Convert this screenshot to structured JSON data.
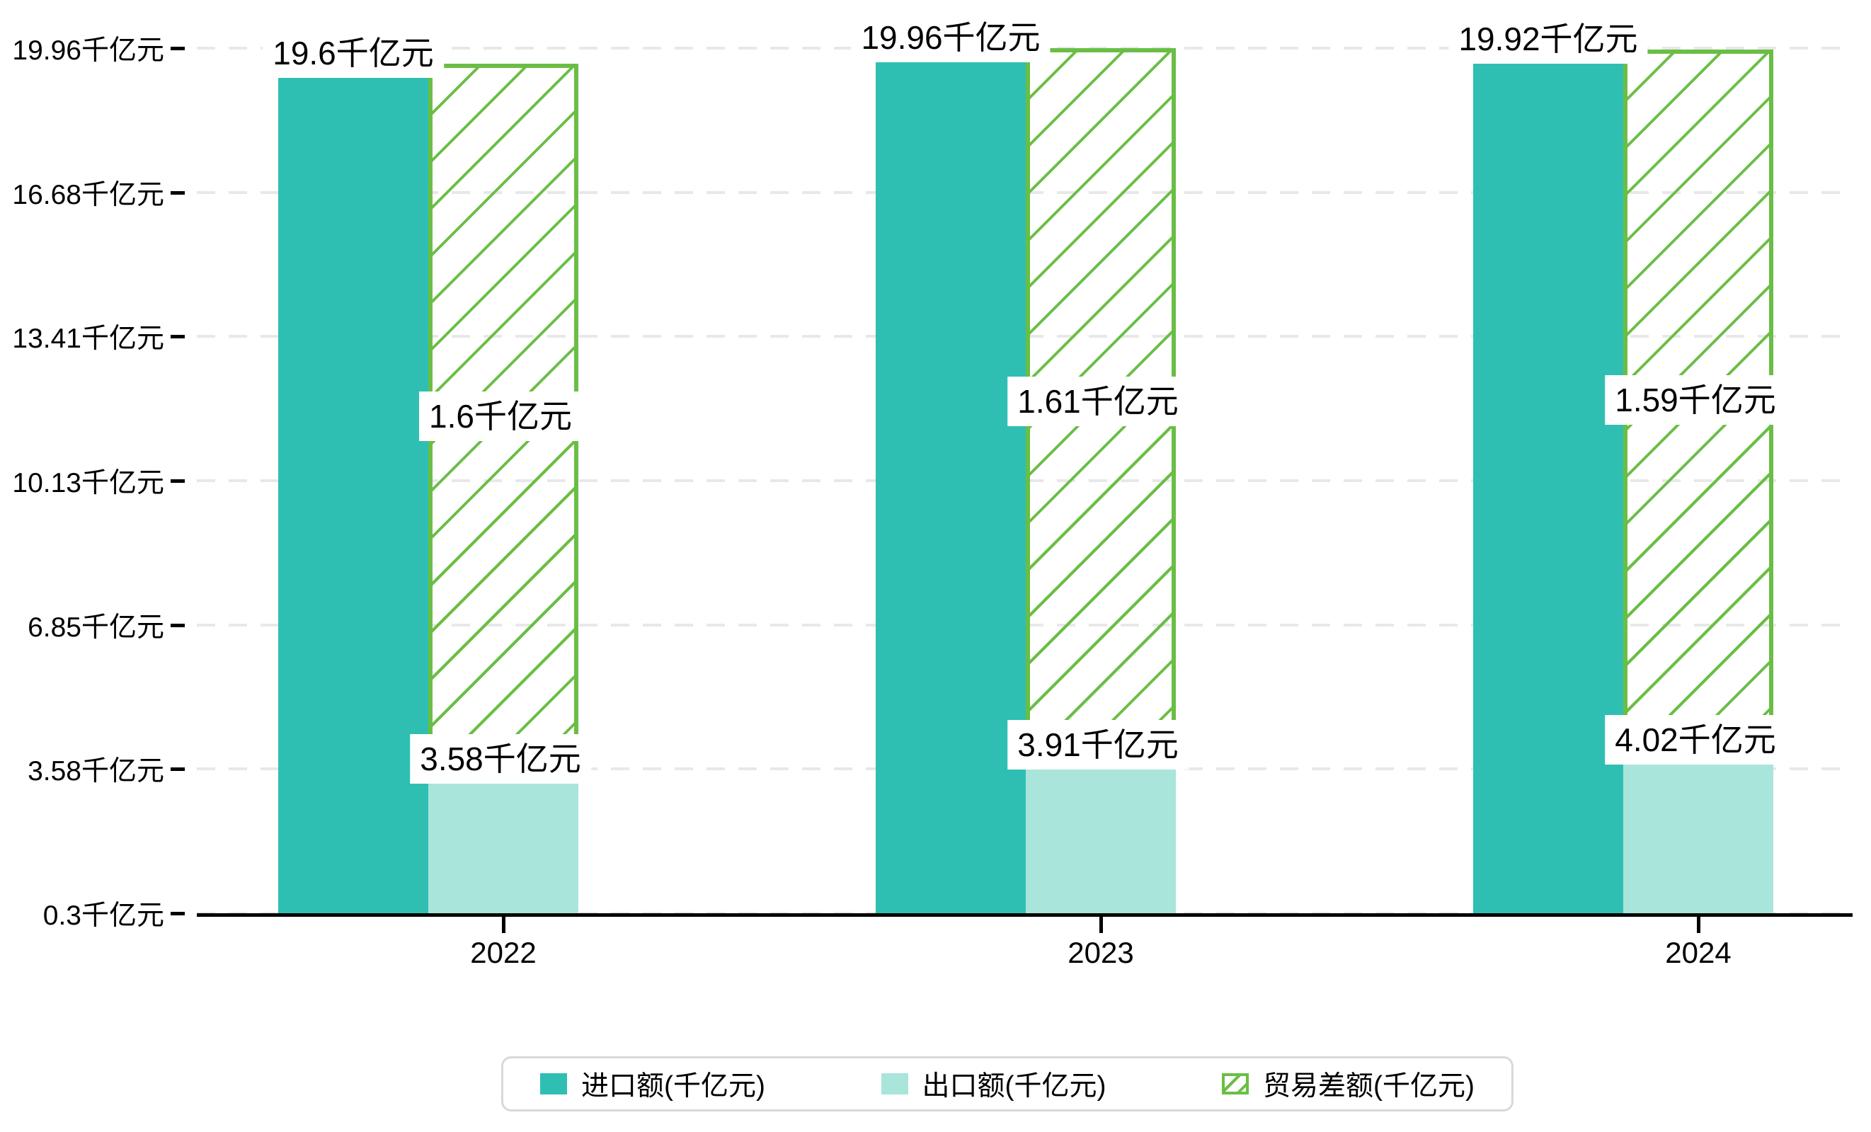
{
  "chart_data": {
    "type": "bar",
    "title": "",
    "categories": [
      "2022",
      "2023",
      "2024"
    ],
    "unit": "千亿元",
    "series": [
      {
        "name": "进口额(千亿元)",
        "values": [
          19.6,
          19.96,
          19.92
        ],
        "labels": [
          "19.6千亿元",
          "19.96千亿元",
          "19.92千亿元"
        ],
        "color": "#2fbfb2",
        "pattern": "solid",
        "bar_role": "standalone-column"
      },
      {
        "name": "出口额(千亿元)",
        "values": [
          3.58,
          3.91,
          4.02
        ],
        "labels": [
          "3.58千亿元",
          "3.91千亿元",
          "4.02千亿元"
        ],
        "color": "#a9e5db",
        "pattern": "solid",
        "bar_role": "stacked-column-bottom"
      },
      {
        "name": "贸易差额(千亿元)",
        "values": [
          1.6,
          1.61,
          1.59
        ],
        "labels": [
          "1.6千亿元",
          "1.61千亿元",
          "1.59千亿元"
        ],
        "color": "#6abe45",
        "pattern": "diagonal-hatch",
        "bar_role": "stacked-column-top-floating",
        "span_from_series": "出口额(千亿元)",
        "span_to_series": "进口额(千亿元)"
      }
    ],
    "y_axis": {
      "min": 0.3,
      "max": 19.96,
      "tick_values": [
        0.3,
        3.58,
        6.85,
        10.13,
        13.41,
        16.68,
        19.96
      ],
      "tick_labels": [
        "0.3千亿元",
        "3.58千亿元",
        "6.85千亿元",
        "10.13千亿元",
        "13.41千亿元",
        "16.68千亿元",
        "19.96千亿元"
      ],
      "grid": "dashed"
    },
    "x_axis": {
      "tick_labels": [
        "2022",
        "2023",
        "2024"
      ]
    },
    "legend": {
      "position": "bottom-center",
      "items": [
        "进口额(千亿元)",
        "出口额(千亿元)",
        "贸易差额(千亿元)"
      ]
    }
  },
  "colors": {
    "import_fill": "#2fbfb2",
    "export_fill": "#a9e5db",
    "balance_green": "#6abe45",
    "gridline": "#e8e8e8",
    "axis": "#000000",
    "label_text": "#000000",
    "label_bg": "#ffffff",
    "legend_border": "#d9d9d9",
    "background": "#ffffff"
  }
}
